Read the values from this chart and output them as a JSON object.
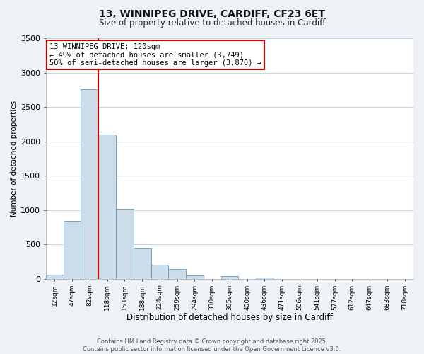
{
  "title_line1": "13, WINNIPEG DRIVE, CARDIFF, CF23 6ET",
  "title_line2": "Size of property relative to detached houses in Cardiff",
  "xlabel": "Distribution of detached houses by size in Cardiff",
  "ylabel": "Number of detached properties",
  "bar_labels": [
    "12sqm",
    "47sqm",
    "82sqm",
    "118sqm",
    "153sqm",
    "188sqm",
    "224sqm",
    "259sqm",
    "294sqm",
    "330sqm",
    "365sqm",
    "400sqm",
    "436sqm",
    "471sqm",
    "506sqm",
    "541sqm",
    "577sqm",
    "612sqm",
    "647sqm",
    "683sqm",
    "718sqm"
  ],
  "bar_values": [
    55,
    840,
    2760,
    2100,
    1020,
    455,
    200,
    140,
    50,
    0,
    40,
    0,
    15,
    0,
    0,
    0,
    0,
    0,
    0,
    0,
    0
  ],
  "bar_color": "#ccdce8",
  "bar_edge_color": "#6699bb",
  "vline_color": "#cc0000",
  "ylim": [
    0,
    3500
  ],
  "yticks": [
    0,
    500,
    1000,
    1500,
    2000,
    2500,
    3000,
    3500
  ],
  "annotation_title": "13 WINNIPEG DRIVE: 120sqm",
  "annotation_line1": "← 49% of detached houses are smaller (3,749)",
  "annotation_line2": "50% of semi-detached houses are larger (3,870) →",
  "annotation_box_color": "#ffffff",
  "annotation_box_edge": "#cc0000",
  "footer_line1": "Contains HM Land Registry data © Crown copyright and database right 2025.",
  "footer_line2": "Contains public sector information licensed under the Open Government Licence v3.0.",
  "bg_color": "#eef2f7",
  "plot_bg_color": "#ffffff",
  "grid_color": "#c5d5e5"
}
